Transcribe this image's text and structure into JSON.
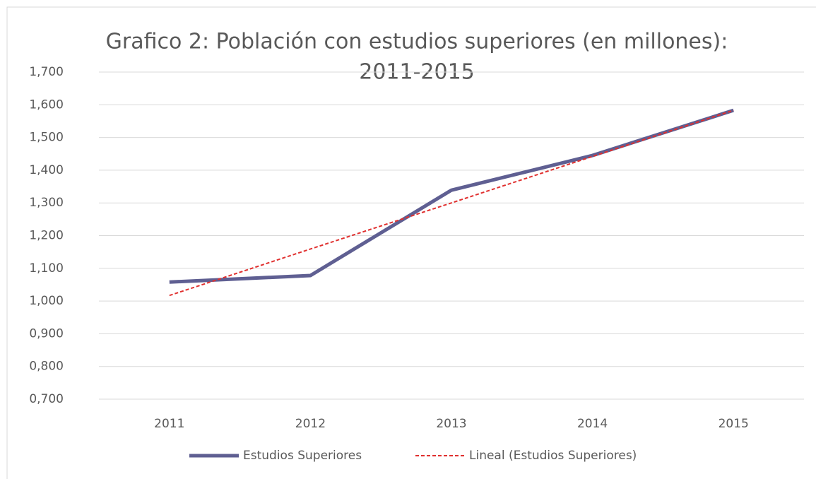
{
  "chart_data": {
    "type": "line",
    "title": [
      "Grafico 2: Población con estudios superiores (en millones):",
      "2011-2015"
    ],
    "categories": [
      "2011",
      "2012",
      "2013",
      "2014",
      "2015"
    ],
    "series": [
      {
        "name": "Estudios Superiores",
        "color": "#5f5f92",
        "dash": false,
        "values": [
          1.058,
          1.078,
          1.339,
          1.445,
          1.583
        ]
      },
      {
        "name": "Lineal (Estudios Superiores)",
        "color": "#e0302f",
        "dash": true,
        "values": [
          1.017,
          1.159,
          1.3,
          1.442,
          1.583
        ]
      }
    ],
    "ylim": [
      0.7,
      1.7
    ],
    "yticks": [
      {
        "value": 0.7,
        "label": "0,700"
      },
      {
        "value": 0.8,
        "label": "0,800"
      },
      {
        "value": 0.9,
        "label": "0,900"
      },
      {
        "value": 1.0,
        "label": "1,000"
      },
      {
        "value": 1.1,
        "label": "1,100"
      },
      {
        "value": 1.2,
        "label": "1,200"
      },
      {
        "value": 1.3,
        "label": "1,300"
      },
      {
        "value": 1.4,
        "label": "1,400"
      },
      {
        "value": 1.5,
        "label": "1,500"
      },
      {
        "value": 1.6,
        "label": "1,600"
      },
      {
        "value": 1.7,
        "label": "1,700"
      }
    ],
    "grid": true,
    "legend": "bottom"
  }
}
